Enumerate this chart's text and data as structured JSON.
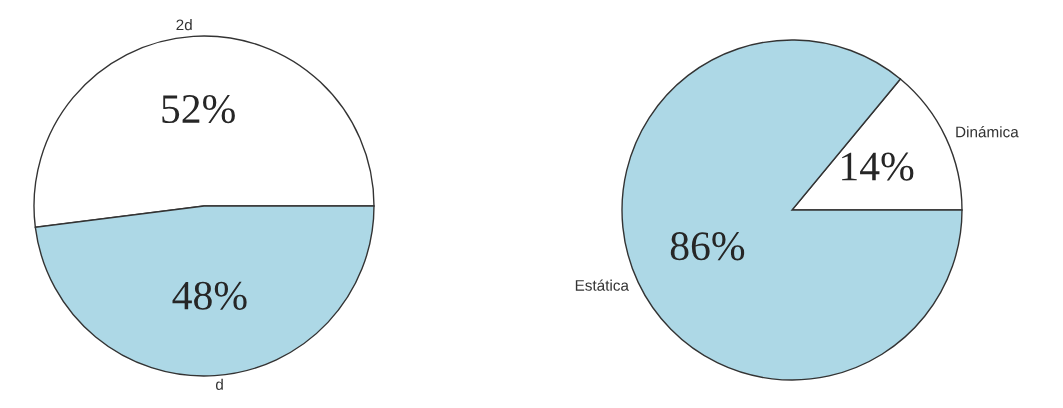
{
  "chart_data": [
    {
      "type": "pie",
      "categories": [
        "2d",
        "d"
      ],
      "values": [
        52,
        48
      ],
      "colors": [
        "#ffffff",
        "#add8e6"
      ],
      "value_labels": [
        "52%",
        "48%"
      ]
    },
    {
      "type": "pie",
      "categories": [
        "Dinámica",
        "Estática"
      ],
      "values": [
        14,
        86
      ],
      "colors": [
        "#ffffff",
        "#add8e6"
      ],
      "value_labels": [
        "14%",
        "86%"
      ]
    }
  ]
}
